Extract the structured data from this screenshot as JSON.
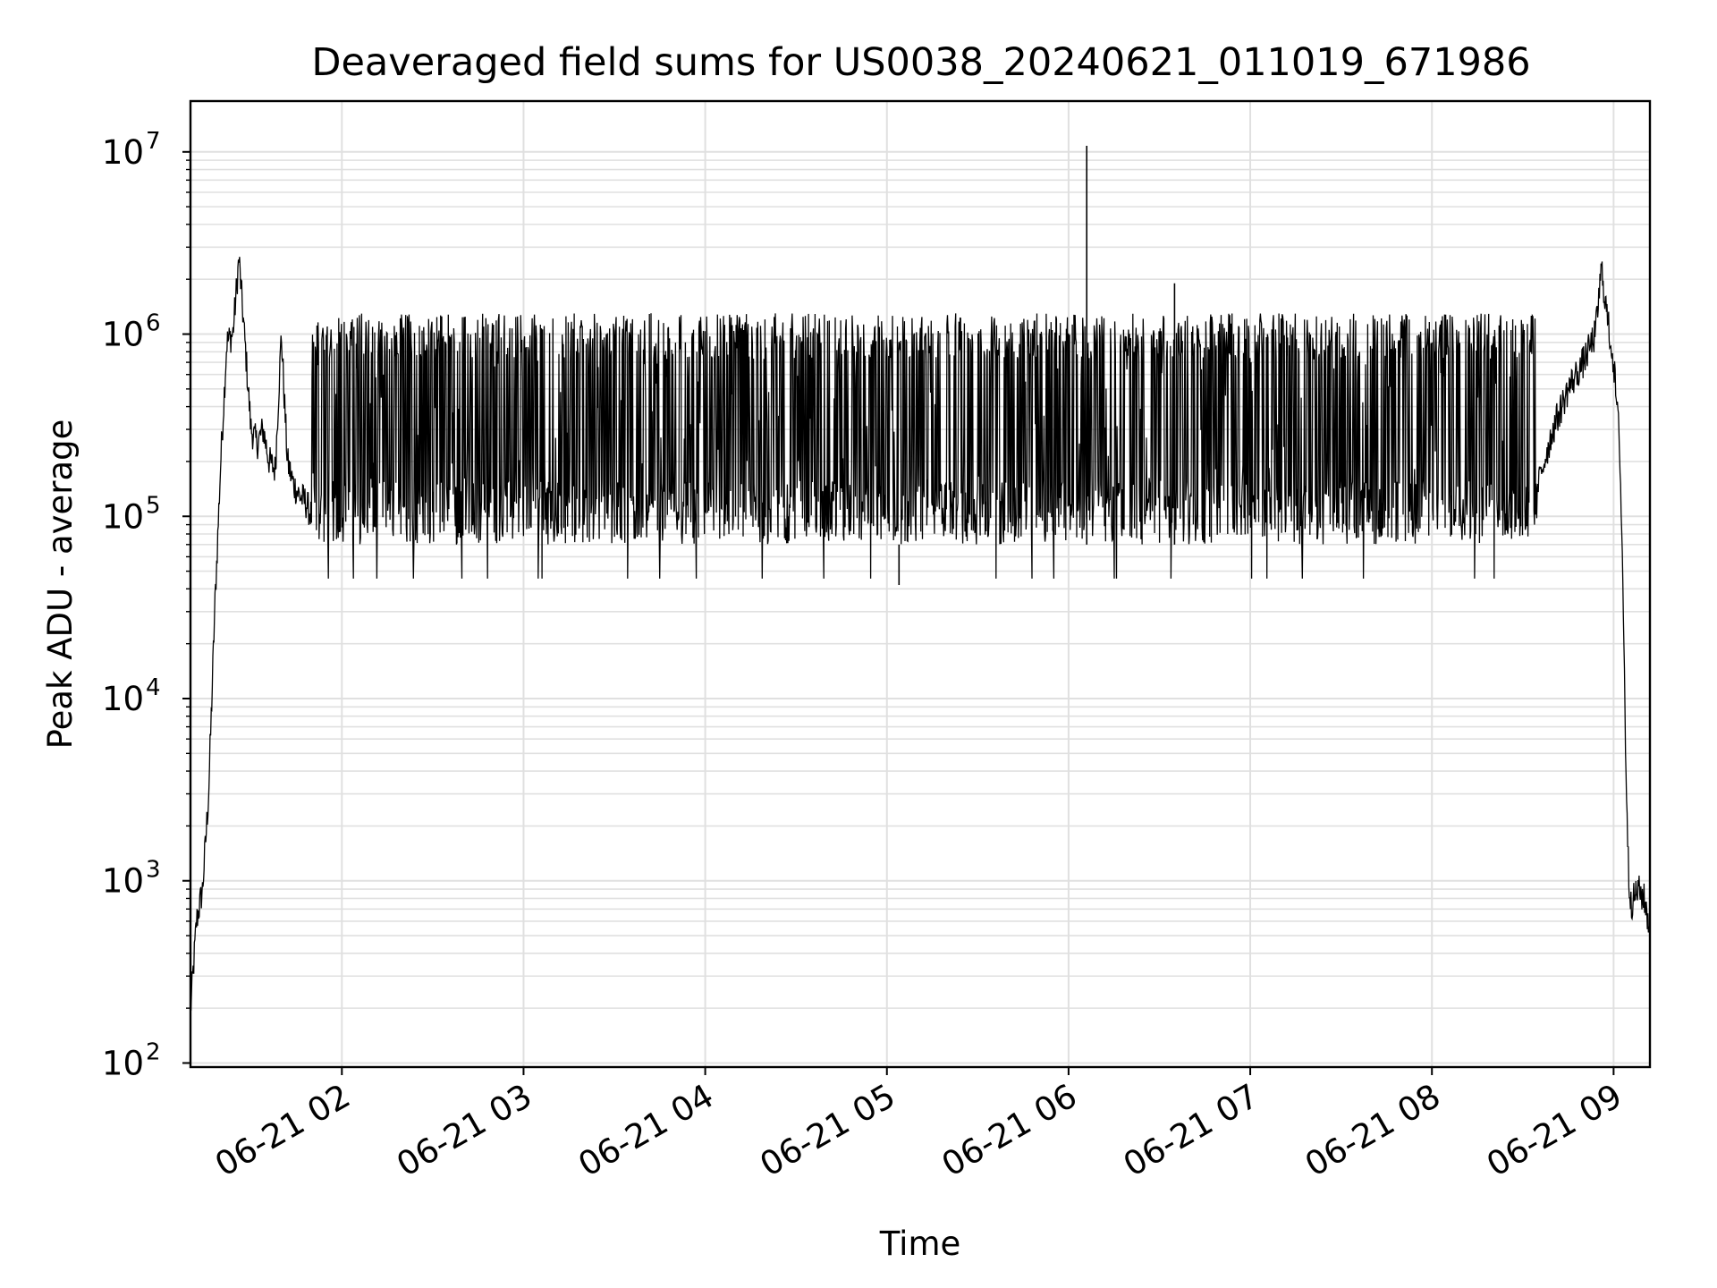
{
  "chart_data": {
    "type": "line",
    "title": "Deaveraged field sums for US0038_20240621_011019_671986",
    "xlabel": "Time",
    "ylabel": "Peak ADU - average",
    "x_axis": "time",
    "y_scale": "log",
    "xlim": [
      "2024-06-21 01:10",
      "2024-06-21 09:12"
    ],
    "ylim": [
      95,
      19000000
    ],
    "x_ticks": [
      "06-21 02",
      "06-21 03",
      "06-21 04",
      "06-21 05",
      "06-21 06",
      "06-21 07",
      "06-21 08",
      "06-21 09"
    ],
    "x_tick_times": [
      "2024-06-21 02:00",
      "2024-06-21 03:00",
      "2024-06-21 04:00",
      "2024-06-21 05:00",
      "2024-06-21 06:00",
      "2024-06-21 07:00",
      "2024-06-21 08:00",
      "2024-06-21 09:00"
    ],
    "y_ticks": [
      {
        "value": 100,
        "base": "10",
        "exp": "2"
      },
      {
        "value": 1000,
        "base": "10",
        "exp": "3"
      },
      {
        "value": 10000,
        "base": "10",
        "exp": "4"
      },
      {
        "value": 100000,
        "base": "10",
        "exp": "5"
      },
      {
        "value": 1000000,
        "base": "10",
        "exp": "6"
      },
      {
        "value": 10000000,
        "base": "10",
        "exp": "7"
      }
    ],
    "grid": true,
    "line_color": "#000000",
    "grid_color": "#e0e0e0",
    "series": [
      {
        "x": [
          "2024-06-21 01:10",
          "2024-06-21 01:12",
          "2024-06-21 01:14",
          "2024-06-21 01:16",
          "2024-06-21 01:18",
          "2024-06-21 01:20",
          "2024-06-21 01:22",
          "2024-06-21 01:24",
          "2024-06-21 01:26",
          "2024-06-21 01:28",
          "2024-06-21 01:30",
          "2024-06-21 01:32",
          "2024-06-21 01:34",
          "2024-06-21 01:36",
          "2024-06-21 01:38",
          "2024-06-21 01:40",
          "2024-06-21 01:42",
          "2024-06-21 01:44",
          "2024-06-21 01:46",
          "2024-06-21 01:48",
          "2024-06-21 01:50",
          "2024-06-21 08:35",
          "2024-06-21 08:40",
          "2024-06-21 08:45",
          "2024-06-21 08:50",
          "2024-06-21 08:54",
          "2024-06-21 08:56",
          "2024-06-21 08:58",
          "2024-06-21 09:00",
          "2024-06-21 09:02",
          "2024-06-21 09:03",
          "2024-06-21 09:04",
          "2024-06-21 09:05",
          "2024-06-21 09:06",
          "2024-06-21 09:08",
          "2024-06-21 09:10",
          "2024-06-21 09:12"
        ],
        "y": [
          190,
          600,
          900,
          3000,
          30000,
          200000,
          900000,
          1000000,
          2600000,
          900000,
          300000,
          250000,
          300000,
          200000,
          180000,
          1000000,
          200000,
          150000,
          130000,
          120000,
          100000,
          150000,
          300000,
          500000,
          700000,
          1000000,
          2300000,
          1200000,
          700000,
          250000,
          50000,
          5000,
          1000,
          750,
          900,
          800,
          550
        ]
      }
    ],
    "band": {
      "x_start": "2024-06-21 01:50",
      "x_end": "2024-06-21 08:35",
      "low": 70000,
      "high": 1300000,
      "note_points": [
        {
          "x": "2024-06-21 06:06",
          "y": 10800000
        },
        {
          "x": "2024-06-21 06:35",
          "y": 1900000
        },
        {
          "x": "2024-06-21 05:04",
          "y": 42000
        }
      ]
    }
  }
}
